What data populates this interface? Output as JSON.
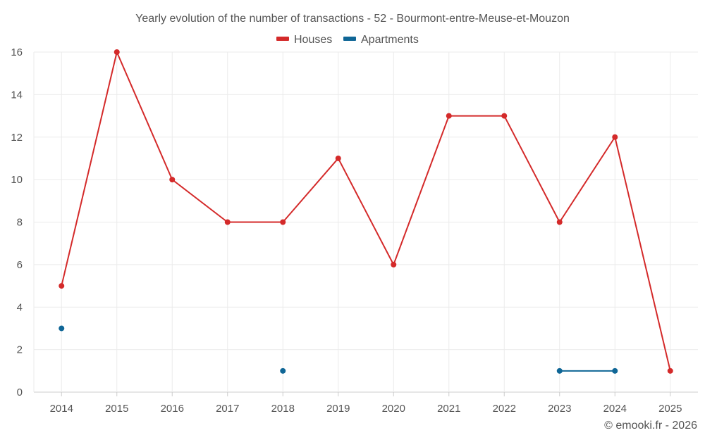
{
  "chart_data": {
    "type": "line",
    "title": "Yearly evolution of the number of transactions - 52 - Bourmont-entre-Meuse-et-Mouzon",
    "xlabel": "",
    "ylabel": "",
    "categories": [
      "2014",
      "2015",
      "2016",
      "2017",
      "2018",
      "2019",
      "2020",
      "2021",
      "2022",
      "2023",
      "2024",
      "2025"
    ],
    "ylim": [
      0,
      16
    ],
    "yticks": [
      0,
      2,
      4,
      6,
      8,
      10,
      12,
      14,
      16
    ],
    "grid": true,
    "legend_position": "top-center",
    "series": [
      {
        "name": "Houses",
        "color": "#d42a2a",
        "values": [
          5,
          16,
          10,
          8,
          8,
          11,
          6,
          13,
          13,
          8,
          12,
          1
        ]
      },
      {
        "name": "Apartments",
        "color": "#0f6696",
        "values": [
          3,
          null,
          null,
          null,
          1,
          null,
          null,
          null,
          null,
          1,
          1,
          null
        ]
      }
    ]
  },
  "credit": "© emooki.fr - 2026"
}
